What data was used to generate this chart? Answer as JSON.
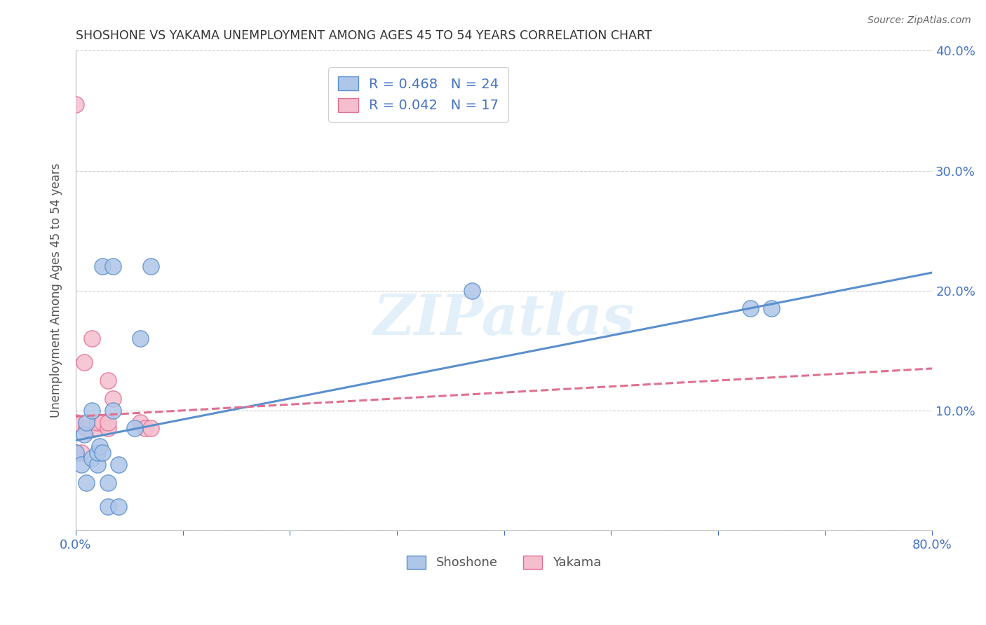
{
  "title": "SHOSHONE VS YAKAMA UNEMPLOYMENT AMONG AGES 45 TO 54 YEARS CORRELATION CHART",
  "source": "Source: ZipAtlas.com",
  "ylabel": "Unemployment Among Ages 45 to 54 years",
  "xlim": [
    0,
    0.8
  ],
  "ylim": [
    0,
    0.4
  ],
  "xticks": [
    0.0,
    0.1,
    0.2,
    0.3,
    0.4,
    0.5,
    0.6,
    0.7,
    0.8
  ],
  "yticks": [
    0.0,
    0.1,
    0.2,
    0.3,
    0.4
  ],
  "ytick_labels_right": [
    "",
    "10.0%",
    "20.0%",
    "30.0%",
    "40.0%"
  ],
  "xtick_labels": [
    "0.0%",
    "",
    "",
    "",
    "",
    "",
    "",
    "",
    "80.0%"
  ],
  "shoshone_color": "#aec6e8",
  "shoshone_edge_color": "#5b8fcc",
  "yakama_color": "#f5bece",
  "yakama_edge_color": "#e07090",
  "shoshone_R": 0.468,
  "shoshone_N": 24,
  "yakama_R": 0.042,
  "yakama_N": 17,
  "legend_text_color": "#4472c4",
  "shoshone_x": [
    0.0,
    0.005,
    0.008,
    0.01,
    0.01,
    0.015,
    0.015,
    0.02,
    0.02,
    0.022,
    0.025,
    0.025,
    0.03,
    0.03,
    0.035,
    0.035,
    0.04,
    0.04,
    0.055,
    0.06,
    0.07,
    0.37,
    0.63,
    0.65
  ],
  "shoshone_y": [
    0.065,
    0.055,
    0.08,
    0.04,
    0.09,
    0.06,
    0.1,
    0.055,
    0.065,
    0.07,
    0.065,
    0.22,
    0.02,
    0.04,
    0.1,
    0.22,
    0.02,
    0.055,
    0.085,
    0.16,
    0.22,
    0.2,
    0.185,
    0.185
  ],
  "yakama_x": [
    0.0,
    0.0,
    0.0,
    0.005,
    0.008,
    0.01,
    0.015,
    0.02,
    0.02,
    0.025,
    0.03,
    0.03,
    0.03,
    0.035,
    0.06,
    0.065,
    0.07
  ],
  "yakama_y": [
    0.065,
    0.09,
    0.355,
    0.065,
    0.14,
    0.085,
    0.16,
    0.085,
    0.09,
    0.09,
    0.085,
    0.09,
    0.125,
    0.11,
    0.09,
    0.085,
    0.085
  ],
  "shoshone_line_x": [
    0.0,
    0.8
  ],
  "shoshone_line_y": [
    0.075,
    0.215
  ],
  "yakama_line_x": [
    0.0,
    0.8
  ],
  "yakama_line_y": [
    0.095,
    0.135
  ],
  "background_color": "#ffffff",
  "grid_color": "#cccccc"
}
